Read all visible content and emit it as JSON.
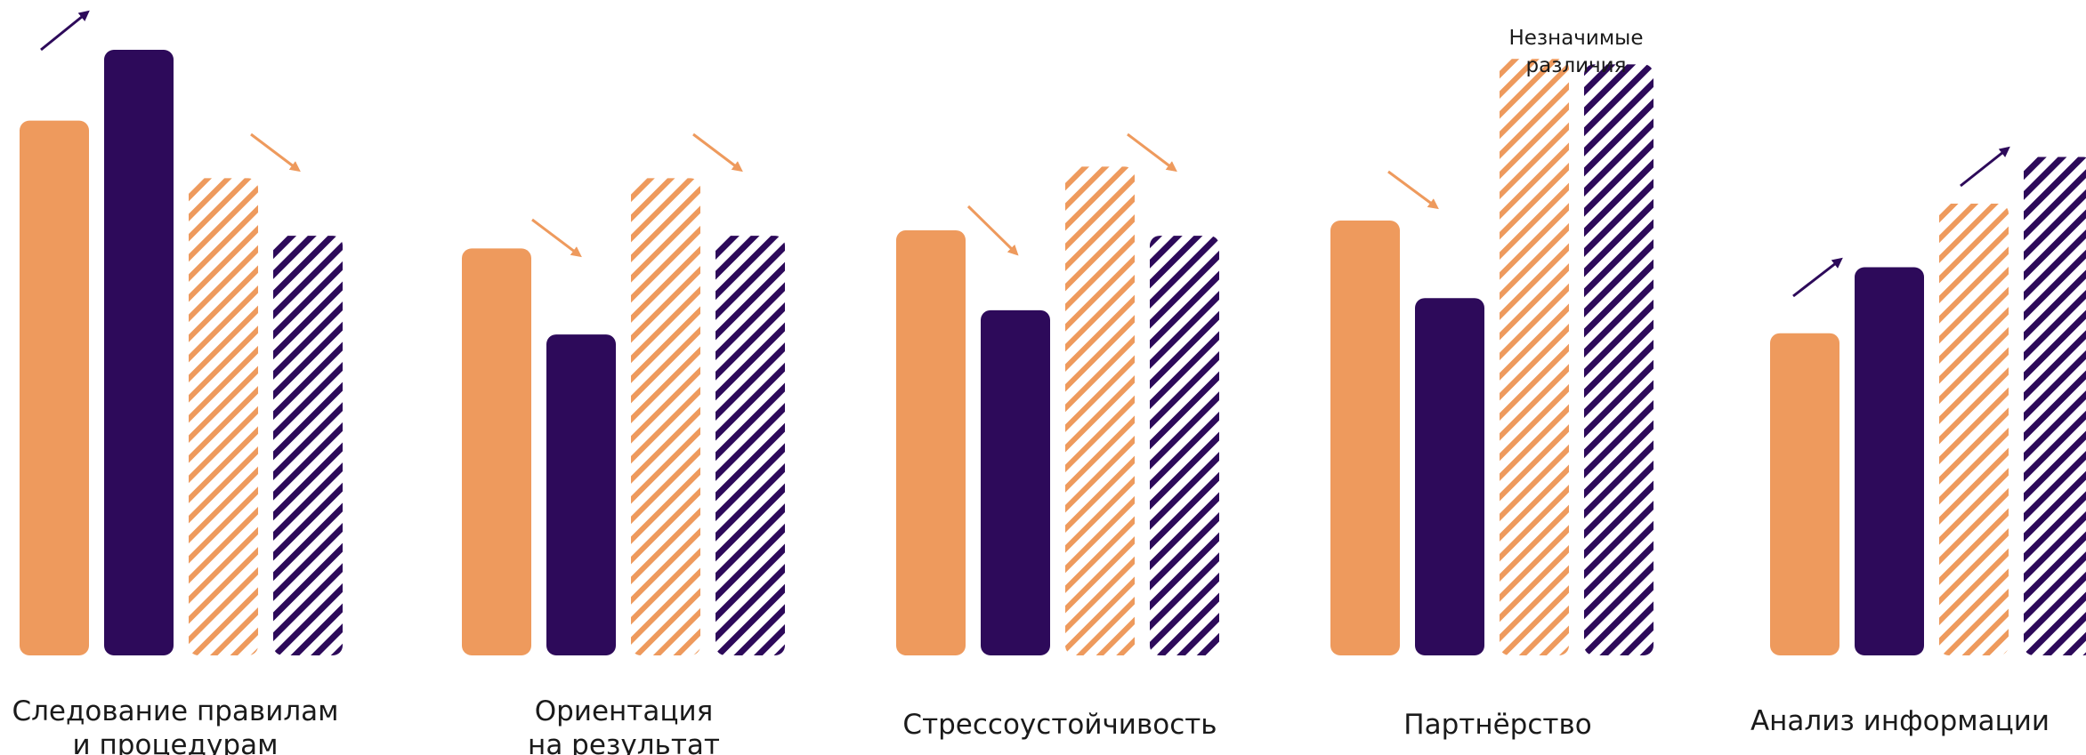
{
  "chart_data": {
    "type": "bar",
    "title": "",
    "xlabel": "",
    "ylabel": "",
    "ylim": [
      0,
      1
    ],
    "grid": false,
    "legend": "none",
    "categories": [
      [
        "Следование  правилам",
        "и процедурам"
      ],
      [
        "Ориентация",
        "на результат"
      ],
      [
        "Стрессоустойчивость"
      ],
      [
        "Партнёрство"
      ],
      [
        "Анализ информации"
      ]
    ],
    "series": [
      {
        "color": "#EE9A5D",
        "pattern": "solid",
        "values": [
          0.883,
          0.672,
          0.702,
          0.718,
          0.532
        ]
      },
      {
        "color": "#2D0A5A",
        "pattern": "solid",
        "values": [
          1.0,
          0.53,
          0.57,
          0.59,
          0.641
        ]
      },
      {
        "color": "#EE9A5D",
        "pattern": "hatched",
        "values": [
          0.788,
          0.788,
          0.807,
          0.985,
          0.746
        ]
      },
      {
        "color": "#2D0A5A",
        "pattern": "hatched",
        "values": [
          0.693,
          0.693,
          0.693,
          0.976,
          0.823
        ]
      }
    ],
    "trend_arrows": [
      {
        "category": 0,
        "direction": "up",
        "color": "#2D0A5A"
      },
      {
        "category": 0,
        "direction": "down",
        "color": "#EE9A5D"
      },
      {
        "category": 1,
        "direction": "down",
        "color": "#EE9A5D"
      },
      {
        "category": 1,
        "direction": "down",
        "color": "#EE9A5D"
      },
      {
        "category": 2,
        "direction": "down",
        "color": "#EE9A5D"
      },
      {
        "category": 2,
        "direction": "down",
        "color": "#EE9A5D"
      },
      {
        "category": 3,
        "direction": "down",
        "color": "#EE9A5D"
      },
      {
        "category": 4,
        "direction": "up",
        "color": "#2D0A5A"
      },
      {
        "category": 4,
        "direction": "up",
        "color": "#2D0A5A"
      }
    ],
    "annotations": [
      {
        "category": 3,
        "text": [
          "Незначимые",
          "различия"
        ]
      }
    ]
  }
}
